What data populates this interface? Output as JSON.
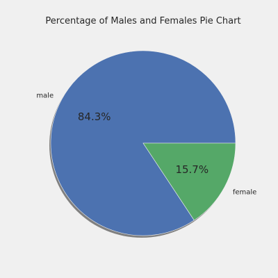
{
  "chart_data": {
    "type": "pie",
    "title": "Percentage of Males and Females Pie Chart",
    "slices": [
      {
        "label": "male",
        "value": 84.3,
        "pct_label": "84.3%",
        "color": "#4c72b0"
      },
      {
        "label": "female",
        "value": 15.7,
        "pct_label": "15.7%",
        "color": "#55a868"
      }
    ],
    "start_angle_deg": 0,
    "direction": "counterclockwise",
    "shadow": true,
    "legend": false
  },
  "colors": {
    "background": "#f0f0f0",
    "shadow": "#808080",
    "text": "#262626"
  }
}
